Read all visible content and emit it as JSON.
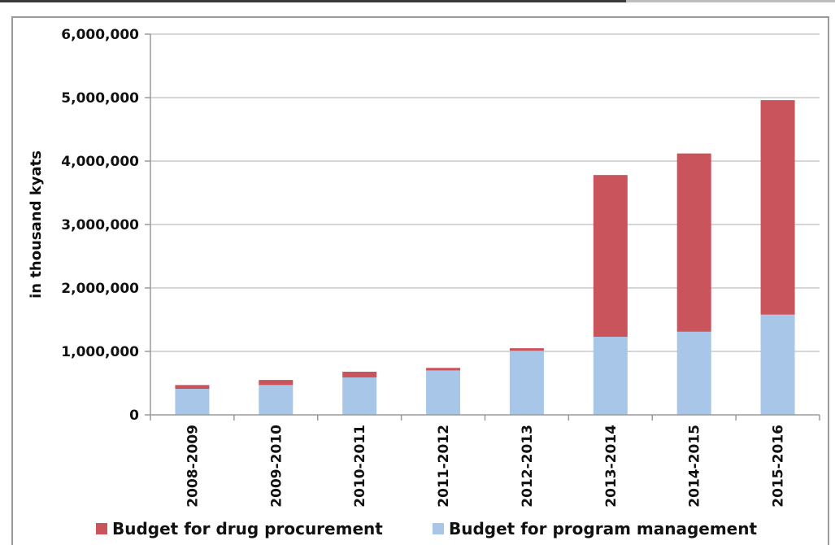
{
  "chart_data": {
    "type": "bar",
    "stacked": true,
    "ylabel": "in thousand kyats",
    "ylim": [
      0,
      6000000
    ],
    "yticks": [
      0,
      1000000,
      2000000,
      3000000,
      4000000,
      5000000,
      6000000
    ],
    "ytick_labels": [
      "0",
      "1,000,000",
      "2,000,000",
      "3,000,000",
      "4,000,000",
      "5,000,000",
      "6,000,000"
    ],
    "categories": [
      "2008-2009",
      "2009-2010",
      "2010-2011",
      "2011-2012",
      "2012-2013",
      "2013-2014",
      "2014-2015",
      "2015-2016"
    ],
    "series": [
      {
        "name": "Budget for program management",
        "color": "#a8c6e8",
        "values": [
          410000,
          470000,
          590000,
          700000,
          1010000,
          1230000,
          1310000,
          1580000
        ]
      },
      {
        "name": "Budget for drug procurement",
        "color": "#c9545c",
        "values": [
          60000,
          80000,
          90000,
          40000,
          40000,
          2550000,
          2810000,
          3380000
        ]
      }
    ],
    "grid": true,
    "legend": {
      "placement": "bottom",
      "entries": [
        "Budget for drug procurement",
        "Budget for program management"
      ]
    }
  }
}
